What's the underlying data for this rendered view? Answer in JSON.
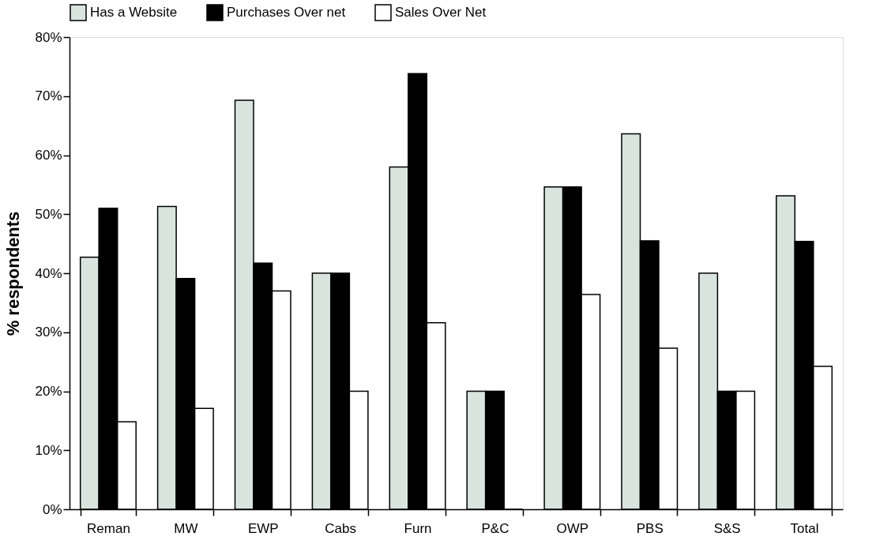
{
  "chart_data": {
    "type": "bar",
    "ylabel": "% respondents",
    "categories": [
      "Reman",
      "MW",
      "EWP",
      "Cabs",
      "Furn",
      "P&C",
      "OWP",
      "PBS",
      "S&S",
      "Total"
    ],
    "series": [
      {
        "name": "Has a  Website",
        "color": "#d9e4df",
        "values": [
          42.7,
          51.3,
          69.3,
          40,
          58,
          20,
          54.6,
          63.6,
          40,
          53.1
        ]
      },
      {
        "name": "Purchases  Over net",
        "color": "#000000",
        "values": [
          51,
          39.1,
          41.7,
          40,
          73.8,
          20,
          54.6,
          45.5,
          20,
          45.4
        ]
      },
      {
        "name": "Sales Over Net",
        "color": "#ffffff",
        "values": [
          14.8,
          17.1,
          37,
          20,
          31.6,
          0,
          36.4,
          27.3,
          20,
          24.2
        ]
      }
    ],
    "ylim": [
      0,
      80
    ],
    "yticks": [
      {
        "value": 0,
        "label": "0%"
      },
      {
        "value": 10,
        "label": "10%"
      },
      {
        "value": 20,
        "label": "20%"
      },
      {
        "value": 30,
        "label": "30%"
      },
      {
        "value": 40,
        "label": "40%"
      },
      {
        "value": 50,
        "label": "50%"
      },
      {
        "value": 60,
        "label": "60%"
      },
      {
        "value": 70,
        "label": "70%"
      },
      {
        "value": 80,
        "label": "80%"
      }
    ],
    "grid": false,
    "legend": "top"
  }
}
